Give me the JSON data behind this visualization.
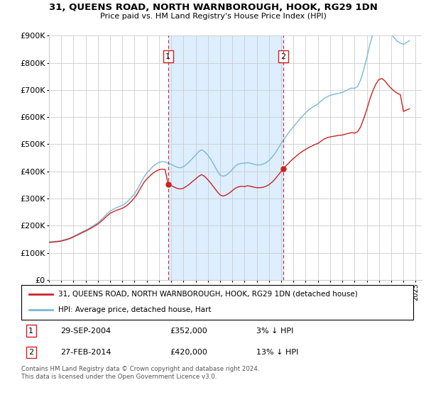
{
  "title": "31, QUEENS ROAD, NORTH WARNBOROUGH, HOOK, RG29 1DN",
  "subtitle": "Price paid vs. HM Land Registry's House Price Index (HPI)",
  "ylim": [
    0,
    900000
  ],
  "xlim_start": 1995.0,
  "xlim_end": 2025.5,
  "purchase1_x": 2004.75,
  "purchase1_y": 352000,
  "purchase1_label": "1",
  "purchase1_date": "29-SEP-2004",
  "purchase1_price": "£352,000",
  "purchase1_hpi": "3% ↓ HPI",
  "purchase2_x": 2014.17,
  "purchase2_y": 420000,
  "purchase2_label": "2",
  "purchase2_date": "27-FEB-2014",
  "purchase2_price": "£420,000",
  "purchase2_hpi": "13% ↓ HPI",
  "hpi_color": "#7ab8d9",
  "property_color": "#cc2222",
  "dashed_color": "#cc2222",
  "shade_color": "#ddeeff",
  "background_color": "#ffffff",
  "grid_color": "#cccccc",
  "legend_property": "31, QUEENS ROAD, NORTH WARNBOROUGH, HOOK, RG29 1DN (detached house)",
  "legend_hpi": "HPI: Average price, detached house, Hart",
  "footnote": "Contains HM Land Registry data © Crown copyright and database right 2024.\nThis data is licensed under the Open Government Licence v3.0.",
  "hpi_data_x": [
    1995.0,
    1995.25,
    1995.5,
    1995.75,
    1996.0,
    1996.25,
    1996.5,
    1996.75,
    1997.0,
    1997.25,
    1997.5,
    1997.75,
    1998.0,
    1998.25,
    1998.5,
    1998.75,
    1999.0,
    1999.25,
    1999.5,
    1999.75,
    2000.0,
    2000.25,
    2000.5,
    2000.75,
    2001.0,
    2001.25,
    2001.5,
    2001.75,
    2002.0,
    2002.25,
    2002.5,
    2002.75,
    2003.0,
    2003.25,
    2003.5,
    2003.75,
    2004.0,
    2004.25,
    2004.5,
    2004.75,
    2005.0,
    2005.25,
    2005.5,
    2005.75,
    2006.0,
    2006.25,
    2006.5,
    2006.75,
    2007.0,
    2007.25,
    2007.5,
    2007.75,
    2008.0,
    2008.25,
    2008.5,
    2008.75,
    2009.0,
    2009.25,
    2009.5,
    2009.75,
    2010.0,
    2010.25,
    2010.5,
    2010.75,
    2011.0,
    2011.25,
    2011.5,
    2011.75,
    2012.0,
    2012.25,
    2012.5,
    2012.75,
    2013.0,
    2013.25,
    2013.5,
    2013.75,
    2014.0,
    2014.25,
    2014.5,
    2014.75,
    2015.0,
    2015.25,
    2015.5,
    2015.75,
    2016.0,
    2016.25,
    2016.5,
    2016.75,
    2017.0,
    2017.25,
    2017.5,
    2017.75,
    2018.0,
    2018.25,
    2018.5,
    2018.75,
    2019.0,
    2019.25,
    2019.5,
    2019.75,
    2020.0,
    2020.25,
    2020.5,
    2020.75,
    2021.0,
    2021.25,
    2021.5,
    2021.75,
    2022.0,
    2022.25,
    2022.5,
    2022.75,
    2023.0,
    2023.25,
    2023.5,
    2023.75,
    2024.0,
    2024.25,
    2024.5
  ],
  "hpi_data_y": [
    140000,
    141000,
    142000,
    143000,
    145000,
    148000,
    151000,
    155000,
    160000,
    166000,
    172000,
    178000,
    183000,
    189000,
    196000,
    203000,
    211000,
    221000,
    232000,
    244000,
    253000,
    260000,
    266000,
    270000,
    275000,
    282000,
    292000,
    304000,
    318000,
    336000,
    357000,
    378000,
    393000,
    406000,
    418000,
    427000,
    433000,
    436000,
    435000,
    430000,
    426000,
    420000,
    415000,
    413000,
    417000,
    426000,
    436000,
    448000,
    460000,
    473000,
    480000,
    472000,
    460000,
    444000,
    424000,
    404000,
    386000,
    382000,
    386000,
    395000,
    407000,
    420000,
    427000,
    430000,
    430000,
    432000,
    430000,
    426000,
    424000,
    424000,
    426000,
    432000,
    440000,
    452000,
    467000,
    485000,
    503000,
    520000,
    536000,
    551000,
    564000,
    578000,
    592000,
    604000,
    616000,
    627000,
    635000,
    642000,
    648000,
    659000,
    668000,
    675000,
    680000,
    683000,
    686000,
    688000,
    691000,
    696000,
    702000,
    707000,
    706000,
    713000,
    737000,
    775000,
    818000,
    867000,
    906000,
    938000,
    956000,
    960000,
    945000,
    924000,
    906000,
    892000,
    880000,
    873000,
    868000,
    875000,
    882000
  ],
  "property_data_x": [
    1995.0,
    1995.25,
    1995.5,
    1995.75,
    1996.0,
    1996.25,
    1996.5,
    1996.75,
    1997.0,
    1997.25,
    1997.5,
    1997.75,
    1998.0,
    1998.25,
    1998.5,
    1998.75,
    1999.0,
    1999.25,
    1999.5,
    1999.75,
    2000.0,
    2000.25,
    2000.5,
    2000.75,
    2001.0,
    2001.25,
    2001.5,
    2001.75,
    2002.0,
    2002.25,
    2002.5,
    2002.75,
    2003.0,
    2003.25,
    2003.5,
    2003.75,
    2004.0,
    2004.25,
    2004.5,
    2004.75,
    2005.0,
    2005.25,
    2005.5,
    2005.75,
    2006.0,
    2006.25,
    2006.5,
    2006.75,
    2007.0,
    2007.25,
    2007.5,
    2007.75,
    2008.0,
    2008.25,
    2008.5,
    2008.75,
    2009.0,
    2009.25,
    2009.5,
    2009.75,
    2010.0,
    2010.25,
    2010.5,
    2010.75,
    2011.0,
    2011.25,
    2011.5,
    2011.75,
    2012.0,
    2012.25,
    2012.5,
    2012.75,
    2013.0,
    2013.25,
    2013.5,
    2013.75,
    2014.0,
    2014.25,
    2014.5,
    2014.75,
    2015.0,
    2015.25,
    2015.5,
    2015.75,
    2016.0,
    2016.25,
    2016.5,
    2016.75,
    2017.0,
    2017.25,
    2017.5,
    2017.75,
    2018.0,
    2018.25,
    2018.5,
    2018.75,
    2019.0,
    2019.25,
    2019.5,
    2019.75,
    2020.0,
    2020.25,
    2020.5,
    2020.75,
    2021.0,
    2021.25,
    2021.5,
    2021.75,
    2022.0,
    2022.25,
    2022.5,
    2022.75,
    2023.0,
    2023.25,
    2023.5,
    2023.75,
    2024.0,
    2024.25,
    2024.5
  ],
  "property_data_y": [
    138000,
    139000,
    140000,
    141000,
    143000,
    146000,
    149000,
    153000,
    158000,
    164000,
    169000,
    175000,
    180000,
    186000,
    192000,
    199000,
    206000,
    215000,
    225000,
    236000,
    245000,
    251000,
    256000,
    260000,
    264000,
    270000,
    279000,
    290000,
    303000,
    319000,
    339000,
    358000,
    372000,
    383000,
    393000,
    401000,
    406000,
    408000,
    407000,
    352000,
    348000,
    342000,
    337000,
    335000,
    338000,
    345000,
    353000,
    363000,
    372000,
    382000,
    388000,
    381000,
    369000,
    356000,
    341000,
    326000,
    313000,
    309000,
    313000,
    320000,
    329000,
    338000,
    343000,
    345000,
    344000,
    347000,
    345000,
    342000,
    340000,
    340000,
    341000,
    345000,
    351000,
    360000,
    372000,
    386000,
    400000,
    414000,
    425000,
    437000,
    447000,
    457000,
    466000,
    474000,
    481000,
    488000,
    493000,
    499000,
    503000,
    511000,
    519000,
    524000,
    527000,
    529000,
    531000,
    533000,
    534000,
    537000,
    540000,
    543000,
    541000,
    546000,
    564000,
    594000,
    627000,
    666000,
    697000,
    722000,
    739000,
    742000,
    733000,
    718000,
    706000,
    696000,
    688000,
    683000,
    621000,
    626000,
    631000
  ]
}
